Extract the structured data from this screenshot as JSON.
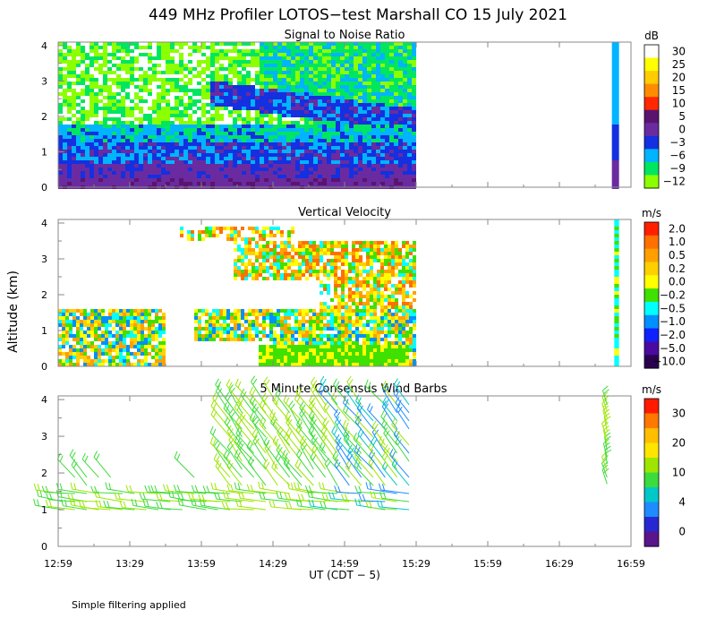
{
  "title": "449 MHz Profiler LOTOS−test Marshall CO 15 July 2021",
  "footer_note": "Simple filtering applied",
  "shared_axes": {
    "xlabel": "UT  (CDT − 5)",
    "x_ticks": [
      "12:59",
      "13:29",
      "13:59",
      "14:29",
      "14:59",
      "15:29",
      "15:59",
      "16:29",
      "16:59"
    ],
    "ylabel": "Altitude (km)",
    "y_ticks": [
      "0",
      "1",
      "2",
      "3",
      "4"
    ],
    "ylim": [
      0,
      4.1
    ]
  },
  "chart_data": [
    {
      "type": "heatmap",
      "title": "Signal to Noise Ratio",
      "colorbar": {
        "unit": "dB",
        "labels": [
          "30",
          "25",
          "20",
          "15",
          "10",
          "5",
          "0",
          "−3",
          "−6",
          "−9",
          "−12"
        ],
        "colors": [
          "#ffffff",
          "#ffff00",
          "#ffcc00",
          "#ff8c00",
          "#ff2800",
          "#5a1470",
          "#6a2ba0",
          "#1430e0",
          "#00b4ff",
          "#00e660",
          "#8cff00"
        ]
      },
      "data_spans": [
        [
          "12:59",
          "15:29"
        ],
        [
          "16:51",
          "16:54"
        ]
      ]
    },
    {
      "type": "heatmap",
      "title": "Vertical Velocity",
      "colorbar": {
        "unit": "m/s",
        "labels": [
          "2.0",
          "1.0",
          "0.5",
          "0.2",
          "0.0",
          "−0.2",
          "−0.5",
          "−1.0",
          "−2.0",
          "−5.0",
          "−10.0"
        ],
        "colors": [
          "#ff2000",
          "#ff7000",
          "#ffa000",
          "#ffd000",
          "#ffff00",
          "#40e000",
          "#00ffff",
          "#0090ff",
          "#1020ff",
          "#4a0aa0",
          "#2a0050"
        ]
      },
      "data_spans": [
        [
          "12:59",
          "15:29"
        ],
        [
          "16:52",
          "16:54"
        ]
      ]
    },
    {
      "type": "wind-barbs",
      "title": "5 Minute Consensus Wind Barbs",
      "colorbar": {
        "unit": "m/s",
        "labels": [
          "30",
          "20",
          "10",
          "4",
          "0"
        ],
        "colors": [
          "#ff1a00",
          "#ff7800",
          "#ffbe00",
          "#ffe600",
          "#9ee600",
          "#3cdc3c",
          "#00c8c8",
          "#1e8cff",
          "#2828d2",
          "#5a148c"
        ]
      },
      "data_spans": [
        [
          "12:59",
          "15:29"
        ],
        [
          "16:47",
          "16:52"
        ]
      ]
    }
  ]
}
